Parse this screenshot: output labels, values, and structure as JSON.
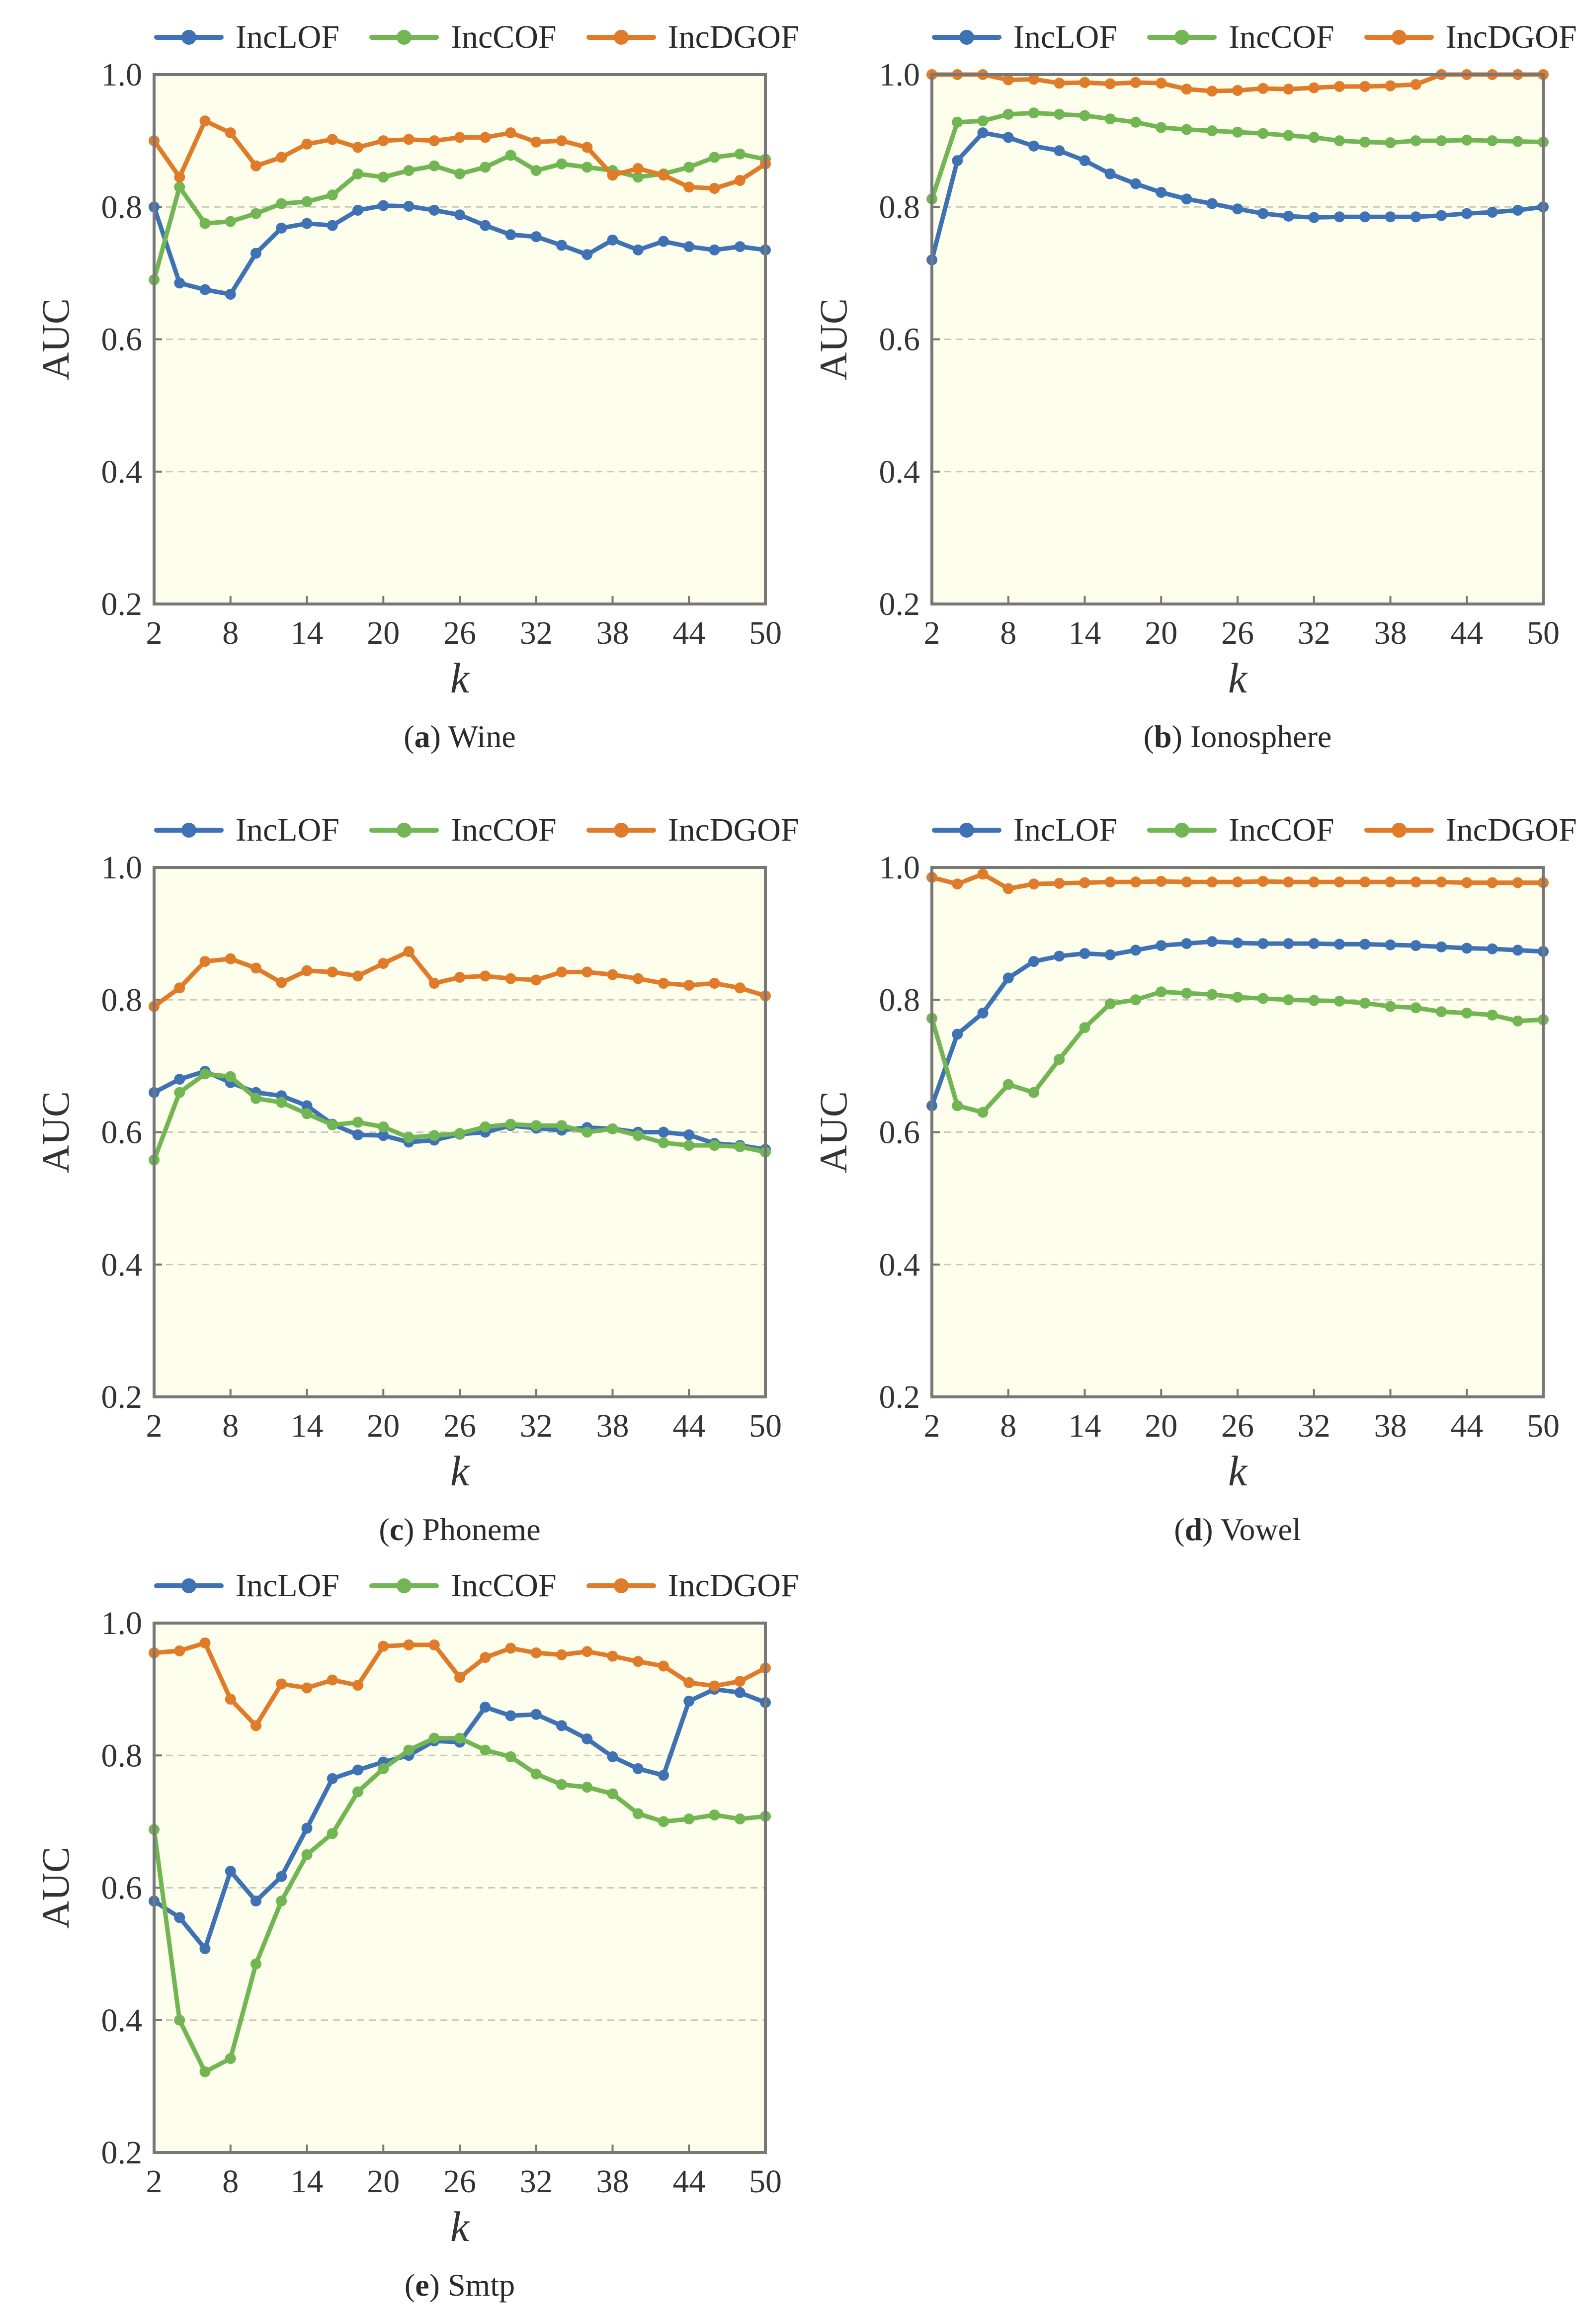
{
  "colors": {
    "IncLOF": "#3f72b5",
    "IncCOF": "#72b553",
    "IncDGOF": "#e07b2a",
    "plot_bg": "#fefeec",
    "frame": "#777777",
    "grid": "#c8c8b8"
  },
  "legend_labels": [
    "IncLOF",
    "IncCOF",
    "IncDGOF"
  ],
  "chart_data": [
    {
      "type": "line",
      "panel_letter": "a",
      "panel_name": "Wine",
      "xlabel": "k",
      "ylabel": "AUC",
      "xlim": [
        2,
        50
      ],
      "ylim": [
        0.2,
        1.0
      ],
      "xticks": [
        "2",
        "8",
        "14",
        "20",
        "26",
        "32",
        "38",
        "44",
        "50"
      ],
      "yticks": [
        "0.2",
        "0.4",
        "0.6",
        "0.8",
        "1.0"
      ],
      "x": [
        2,
        4,
        6,
        8,
        10,
        12,
        14,
        16,
        18,
        20,
        22,
        24,
        26,
        28,
        30,
        32,
        34,
        36,
        38,
        40,
        42,
        44,
        46,
        48,
        50
      ],
      "series": [
        {
          "name": "IncLOF",
          "values": [
            0.8,
            0.685,
            0.675,
            0.668,
            0.73,
            0.768,
            0.775,
            0.772,
            0.795,
            0.802,
            0.801,
            0.795,
            0.788,
            0.772,
            0.758,
            0.755,
            0.742,
            0.728,
            0.75,
            0.735,
            0.748,
            0.74,
            0.735,
            0.74,
            0.735
          ]
        },
        {
          "name": "IncCOF",
          "values": [
            0.69,
            0.83,
            0.775,
            0.778,
            0.79,
            0.805,
            0.808,
            0.818,
            0.85,
            0.845,
            0.855,
            0.862,
            0.85,
            0.86,
            0.878,
            0.855,
            0.865,
            0.86,
            0.855,
            0.845,
            0.85,
            0.86,
            0.875,
            0.88,
            0.872
          ]
        },
        {
          "name": "IncDGOF",
          "values": [
            0.9,
            0.845,
            0.93,
            0.912,
            0.862,
            0.875,
            0.895,
            0.902,
            0.89,
            0.9,
            0.902,
            0.9,
            0.905,
            0.905,
            0.912,
            0.898,
            0.9,
            0.89,
            0.848,
            0.858,
            0.848,
            0.83,
            0.828,
            0.84,
            0.865
          ]
        }
      ]
    },
    {
      "type": "line",
      "panel_letter": "b",
      "panel_name": "Ionosphere",
      "xlabel": "k",
      "ylabel": "AUC",
      "xlim": [
        2,
        50
      ],
      "ylim": [
        0.2,
        1.0
      ],
      "xticks": [
        "2",
        "8",
        "14",
        "20",
        "26",
        "32",
        "38",
        "44",
        "50"
      ],
      "yticks": [
        "0.2",
        "0.4",
        "0.6",
        "0.8",
        "1.0"
      ],
      "x": [
        2,
        4,
        6,
        8,
        10,
        12,
        14,
        16,
        18,
        20,
        22,
        24,
        26,
        28,
        30,
        32,
        34,
        36,
        38,
        40,
        42,
        44,
        46,
        48,
        50
      ],
      "series": [
        {
          "name": "IncLOF",
          "values": [
            0.72,
            0.87,
            0.912,
            0.905,
            0.892,
            0.885,
            0.87,
            0.85,
            0.835,
            0.822,
            0.812,
            0.805,
            0.797,
            0.79,
            0.786,
            0.784,
            0.785,
            0.785,
            0.785,
            0.785,
            0.787,
            0.79,
            0.792,
            0.795,
            0.8
          ]
        },
        {
          "name": "IncCOF",
          "values": [
            0.812,
            0.928,
            0.93,
            0.94,
            0.942,
            0.94,
            0.938,
            0.933,
            0.928,
            0.92,
            0.917,
            0.915,
            0.913,
            0.911,
            0.908,
            0.905,
            0.9,
            0.898,
            0.897,
            0.9,
            0.9,
            0.901,
            0.9,
            0.899,
            0.898
          ]
        },
        {
          "name": "IncDGOF",
          "values": [
            1.0,
            1.0,
            1.0,
            0.992,
            0.993,
            0.987,
            0.988,
            0.986,
            0.988,
            0.987,
            0.978,
            0.975,
            0.976,
            0.979,
            0.978,
            0.98,
            0.982,
            0.982,
            0.983,
            0.985,
            1.0,
            1.0,
            1.0,
            1.0,
            1.0
          ]
        }
      ]
    },
    {
      "type": "line",
      "panel_letter": "c",
      "panel_name": "Phoneme",
      "xlabel": "k",
      "ylabel": "AUC",
      "xlim": [
        2,
        50
      ],
      "ylim": [
        0.2,
        1.0
      ],
      "xticks": [
        "2",
        "8",
        "14",
        "20",
        "26",
        "32",
        "38",
        "44",
        "50"
      ],
      "yticks": [
        "0.2",
        "0.4",
        "0.6",
        "0.8",
        "1.0"
      ],
      "x": [
        2,
        4,
        6,
        8,
        10,
        12,
        14,
        16,
        18,
        20,
        22,
        24,
        26,
        28,
        30,
        32,
        34,
        36,
        38,
        40,
        42,
        44,
        46,
        48,
        50
      ],
      "series": [
        {
          "name": "IncLOF",
          "values": [
            0.66,
            0.68,
            0.692,
            0.675,
            0.66,
            0.655,
            0.64,
            0.612,
            0.596,
            0.595,
            0.585,
            0.588,
            0.597,
            0.6,
            0.61,
            0.606,
            0.603,
            0.607,
            0.605,
            0.6,
            0.6,
            0.596,
            0.583,
            0.58,
            0.574
          ]
        },
        {
          "name": "IncCOF",
          "values": [
            0.558,
            0.66,
            0.688,
            0.684,
            0.651,
            0.645,
            0.628,
            0.611,
            0.615,
            0.608,
            0.592,
            0.595,
            0.598,
            0.608,
            0.612,
            0.61,
            0.61,
            0.6,
            0.605,
            0.595,
            0.584,
            0.58,
            0.58,
            0.578,
            0.57
          ]
        },
        {
          "name": "IncDGOF",
          "values": [
            0.79,
            0.818,
            0.858,
            0.862,
            0.848,
            0.826,
            0.844,
            0.842,
            0.836,
            0.855,
            0.873,
            0.825,
            0.834,
            0.836,
            0.832,
            0.83,
            0.842,
            0.842,
            0.838,
            0.832,
            0.825,
            0.822,
            0.825,
            0.818,
            0.806
          ]
        }
      ]
    },
    {
      "type": "line",
      "panel_letter": "d",
      "panel_name": "Vowel",
      "xlabel": "k",
      "ylabel": "AUC",
      "xlim": [
        2,
        50
      ],
      "ylim": [
        0.2,
        1.0
      ],
      "xticks": [
        "2",
        "8",
        "14",
        "20",
        "26",
        "32",
        "38",
        "44",
        "50"
      ],
      "yticks": [
        "0.2",
        "0.4",
        "0.6",
        "0.8",
        "1.0"
      ],
      "x": [
        2,
        4,
        6,
        8,
        10,
        12,
        14,
        16,
        18,
        20,
        22,
        24,
        26,
        28,
        30,
        32,
        34,
        36,
        38,
        40,
        42,
        44,
        46,
        48,
        50
      ],
      "series": [
        {
          "name": "IncLOF",
          "values": [
            0.64,
            0.748,
            0.78,
            0.833,
            0.858,
            0.866,
            0.87,
            0.868,
            0.875,
            0.882,
            0.885,
            0.888,
            0.886,
            0.885,
            0.885,
            0.885,
            0.884,
            0.884,
            0.883,
            0.882,
            0.88,
            0.878,
            0.877,
            0.875,
            0.873
          ]
        },
        {
          "name": "IncCOF",
          "values": [
            0.772,
            0.64,
            0.63,
            0.672,
            0.66,
            0.71,
            0.758,
            0.794,
            0.8,
            0.812,
            0.81,
            0.808,
            0.804,
            0.802,
            0.8,
            0.799,
            0.798,
            0.795,
            0.79,
            0.788,
            0.782,
            0.78,
            0.777,
            0.768,
            0.77
          ]
        },
        {
          "name": "IncDGOF",
          "values": [
            0.985,
            0.975,
            0.99,
            0.968,
            0.975,
            0.976,
            0.977,
            0.978,
            0.978,
            0.979,
            0.978,
            0.978,
            0.978,
            0.979,
            0.978,
            0.978,
            0.978,
            0.978,
            0.978,
            0.978,
            0.978,
            0.977,
            0.977,
            0.977,
            0.977
          ]
        }
      ]
    },
    {
      "type": "line",
      "panel_letter": "e",
      "panel_name": "Smtp",
      "xlabel": "k",
      "ylabel": "AUC",
      "xlim": [
        2,
        50
      ],
      "ylim": [
        0.2,
        1.0
      ],
      "xticks": [
        "2",
        "8",
        "14",
        "20",
        "26",
        "32",
        "38",
        "44",
        "50"
      ],
      "yticks": [
        "0.2",
        "0.4",
        "0.6",
        "0.8",
        "1.0"
      ],
      "x": [
        2,
        4,
        6,
        8,
        10,
        12,
        14,
        16,
        18,
        20,
        22,
        24,
        26,
        28,
        30,
        32,
        34,
        36,
        38,
        40,
        42,
        44,
        46,
        48,
        50
      ],
      "series": [
        {
          "name": "IncLOF",
          "values": [
            0.58,
            0.555,
            0.508,
            0.625,
            0.58,
            0.617,
            0.69,
            0.765,
            0.778,
            0.79,
            0.8,
            0.822,
            0.82,
            0.873,
            0.86,
            0.862,
            0.845,
            0.825,
            0.798,
            0.78,
            0.77,
            0.882,
            0.9,
            0.895,
            0.88
          ]
        },
        {
          "name": "IncCOF",
          "values": [
            0.688,
            0.4,
            0.322,
            0.342,
            0.485,
            0.58,
            0.65,
            0.682,
            0.745,
            0.78,
            0.808,
            0.826,
            0.826,
            0.808,
            0.798,
            0.772,
            0.756,
            0.752,
            0.742,
            0.712,
            0.7,
            0.704,
            0.71,
            0.704,
            0.708
          ]
        },
        {
          "name": "IncDGOF",
          "values": [
            0.955,
            0.958,
            0.97,
            0.885,
            0.845,
            0.908,
            0.902,
            0.914,
            0.906,
            0.965,
            0.967,
            0.967,
            0.918,
            0.948,
            0.962,
            0.955,
            0.952,
            0.957,
            0.95,
            0.942,
            0.935,
            0.91,
            0.905,
            0.912,
            0.932
          ]
        }
      ]
    }
  ]
}
